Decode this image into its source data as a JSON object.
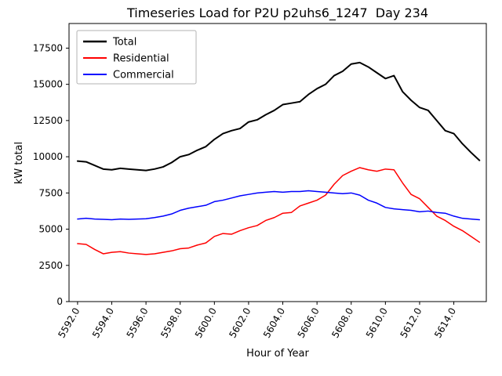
{
  "chart_data": {
    "type": "line",
    "title": "Timeseries Load for P2U p2uhs6_1247  Day 234",
    "xlabel": "Hour of Year",
    "ylabel": "kW total",
    "xlim": [
      5591.5,
      5615.9
    ],
    "ylim": [
      0,
      19200
    ],
    "grid": false,
    "legend_position": "upper left",
    "xticks": {
      "values": [
        5592,
        5594,
        5596,
        5598,
        5600,
        5602,
        5604,
        5606,
        5608,
        5610,
        5612,
        5614
      ],
      "labels": [
        "5592.0",
        "5594.0",
        "5596.0",
        "5598.0",
        "5600.0",
        "5602.0",
        "5604.0",
        "5606.0",
        "5608.0",
        "5610.0",
        "5612.0",
        "5614.0"
      ]
    },
    "yticks": {
      "values": [
        0,
        2500,
        5000,
        7500,
        10000,
        12500,
        15000,
        17500
      ],
      "labels": [
        "0",
        "2500",
        "5000",
        "7500",
        "10000",
        "12500",
        "15000",
        "17500"
      ]
    },
    "x": [
      5592.0,
      5592.5,
      5593.0,
      5593.5,
      5594.0,
      5594.5,
      5595.0,
      5595.5,
      5596.0,
      5596.5,
      5597.0,
      5597.5,
      5598.0,
      5598.5,
      5599.0,
      5599.5,
      5600.0,
      5600.5,
      5601.0,
      5601.5,
      5602.0,
      5602.5,
      5603.0,
      5603.5,
      5604.0,
      5604.5,
      5605.0,
      5605.5,
      5606.0,
      5606.5,
      5607.0,
      5607.5,
      5608.0,
      5608.5,
      5609.0,
      5609.5,
      5610.0,
      5610.5,
      5611.0,
      5611.5,
      5612.0,
      5612.5,
      5613.0,
      5613.5,
      5614.0,
      5614.5,
      5615.0,
      5615.5
    ],
    "series": [
      {
        "name": "Total",
        "color": "#000000",
        "linewidth": 2,
        "values": [
          9700,
          9650,
          9400,
          9150,
          9100,
          9200,
          9150,
          9100,
          9050,
          9150,
          9300,
          9600,
          10000,
          10150,
          10450,
          10700,
          11200,
          11600,
          11800,
          11950,
          12400,
          12550,
          12900,
          13200,
          13600,
          13700,
          13800,
          14300,
          14700,
          15000,
          15600,
          15900,
          16400,
          16500,
          16200,
          15800,
          15400,
          15600,
          14500,
          13900,
          13400,
          13200,
          12500,
          11800,
          11600,
          10900,
          10300,
          9750
        ]
      },
      {
        "name": "Residential",
        "color": "#ff0000",
        "linewidth": 1.5,
        "values": [
          4000,
          3950,
          3600,
          3300,
          3400,
          3450,
          3350,
          3300,
          3250,
          3300,
          3400,
          3500,
          3650,
          3700,
          3900,
          4050,
          4500,
          4700,
          4650,
          4900,
          5100,
          5250,
          5600,
          5800,
          6100,
          6150,
          6600,
          6800,
          7000,
          7350,
          8100,
          8700,
          9000,
          9250,
          9100,
          9000,
          9150,
          9100,
          8200,
          7400,
          7100,
          6500,
          5900,
          5600,
          5200,
          4900,
          4500,
          4100
        ]
      },
      {
        "name": "Commercial",
        "color": "#0000ff",
        "linewidth": 1.5,
        "values": [
          5700,
          5750,
          5700,
          5680,
          5650,
          5700,
          5680,
          5700,
          5720,
          5800,
          5900,
          6050,
          6300,
          6450,
          6550,
          6650,
          6900,
          7000,
          7150,
          7300,
          7400,
          7500,
          7550,
          7600,
          7550,
          7600,
          7600,
          7650,
          7600,
          7550,
          7500,
          7450,
          7500,
          7350,
          7000,
          6800,
          6500,
          6400,
          6350,
          6300,
          6200,
          6250,
          6150,
          6100,
          5900,
          5750,
          5700,
          5650
        ]
      }
    ]
  }
}
